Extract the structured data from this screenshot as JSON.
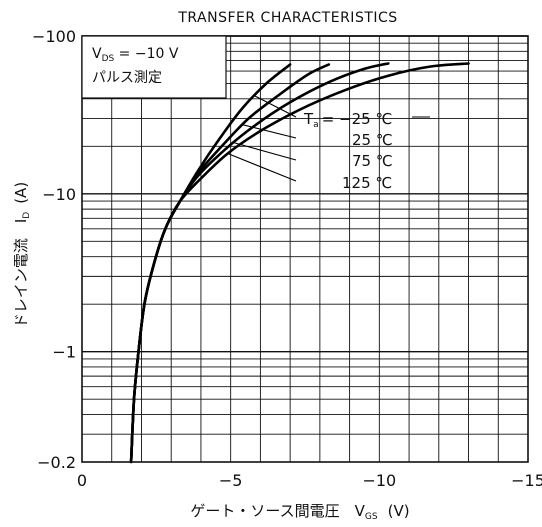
{
  "chart_data": {
    "type": "line",
    "title": "TRANSFER CHARACTERISTICS",
    "xlabel": "ゲート・ソース間電圧　V",
    "xlabel_sub": "GS",
    "xlabel_unit": "(V)",
    "ylabel": "ドレイン電流　I",
    "ylabel_sub": "D",
    "ylabel_unit": "(A)",
    "x_scale": "linear",
    "y_scale": "log",
    "xlim": [
      0,
      -15
    ],
    "ylim": [
      -0.2,
      -100
    ],
    "x_ticks": [
      {
        "value": 0,
        "label": "0"
      },
      {
        "value": -5,
        "label": "−5"
      },
      {
        "value": -10,
        "label": "−10"
      },
      {
        "value": -15,
        "label": "−15"
      }
    ],
    "y_ticks": [
      {
        "value": -0.2,
        "label": "−0.2"
      },
      {
        "value": -1,
        "label": "−1"
      },
      {
        "value": -10,
        "label": "−10"
      },
      {
        "value": -100,
        "label": "−100"
      }
    ],
    "grid": true,
    "conditions": {
      "line1_pre": "V",
      "line1_sub": "DS",
      "line1_post": " = −10 V",
      "line2": "パルス測定"
    },
    "series_prefix": "T",
    "series_prefix_sub": "a",
    "series": [
      {
        "name": "−25 ℃",
        "label": "= −25 ℃",
        "x": [
          -1.65,
          -1.75,
          -1.9,
          -2.1,
          -2.4,
          -2.8,
          -3.3,
          -3.9,
          -4.6,
          -5.4,
          -6.2,
          -7.0
        ],
        "y": [
          -0.2,
          -0.5,
          -1,
          -2,
          -3.5,
          -6,
          -9,
          -14,
          -22,
          -35,
          -50,
          -66
        ]
      },
      {
        "name": "25 ℃",
        "label": "25 ℃",
        "x": [
          -1.65,
          -1.75,
          -1.9,
          -2.1,
          -2.4,
          -2.8,
          -3.3,
          -3.9,
          -4.7,
          -5.6,
          -6.6,
          -7.6,
          -8.3
        ],
        "y": [
          -0.2,
          -0.5,
          -1,
          -2,
          -3.5,
          -6,
          -9,
          -13.5,
          -20,
          -30,
          -42,
          -57,
          -66
        ]
      },
      {
        "name": "75 ℃",
        "label": "75 ℃",
        "x": [
          -1.65,
          -1.75,
          -1.9,
          -2.1,
          -2.4,
          -2.8,
          -3.3,
          -3.9,
          -4.8,
          -5.8,
          -7.0,
          -8.3,
          -9.5,
          -10.3
        ],
        "y": [
          -0.2,
          -0.5,
          -1,
          -2,
          -3.5,
          -6,
          -9,
          -13,
          -19,
          -27,
          -38,
          -51,
          -62,
          -67
        ]
      },
      {
        "name": "125 ℃",
        "label": "125 ℃",
        "x": [
          -1.65,
          -1.75,
          -1.9,
          -2.1,
          -2.4,
          -2.8,
          -3.3,
          -4.0,
          -4.9,
          -6.0,
          -7.3,
          -8.8,
          -10.3,
          -11.7,
          -13.0
        ],
        "y": [
          -0.2,
          -0.5,
          -1,
          -2,
          -3.5,
          -6,
          -9,
          -12.5,
          -18,
          -25,
          -34,
          -45,
          -56,
          -64,
          -67
        ]
      }
    ]
  }
}
